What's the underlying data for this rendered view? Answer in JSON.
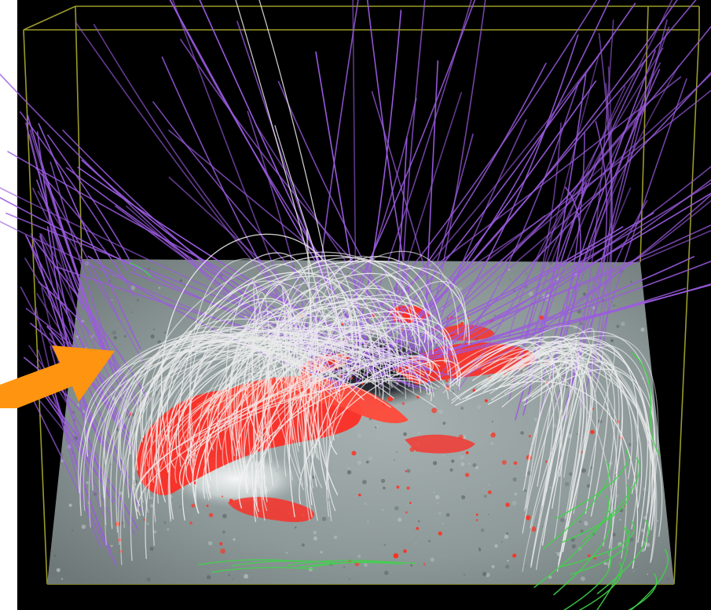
{
  "scene": {
    "description_visible_text": "",
    "colors": {
      "background": "#000000",
      "frame": "#9a9a2a",
      "surface_gray": "#8f9a9a",
      "open_field_lines": "#9b5be0",
      "closed_field_lines": "#f2f2f2",
      "current_isosurface": "#ff2a22",
      "sunspot_dark": "#1a1a22",
      "green_lines": "#3fd34a",
      "arrow": "#ff9410"
    },
    "icons": [
      "orange-arrow-pointer"
    ]
  }
}
